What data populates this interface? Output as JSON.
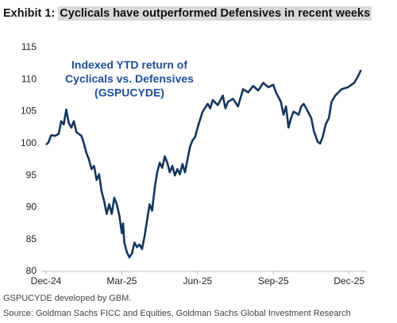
{
  "chart_data": {
    "type": "line",
    "exhibit_label": "Exhibit 1:",
    "title": "Cyclicals have outperformed Defensives in recent weeks",
    "annotation": [
      "Indexed YTD return of",
      "Cyclicals vs. Defensives",
      "(GSPUCYDE)"
    ],
    "notes": [
      "GSPUCYDE developed by GBM.",
      "Source: Goldman Sachs FICC and Equities, Goldman Sachs Global Investment Research"
    ],
    "x": [
      0,
      0.1,
      0.2,
      0.35,
      0.5,
      0.6,
      0.7,
      0.8,
      0.9,
      1.0,
      1.1,
      1.2,
      1.4,
      1.5,
      1.6,
      1.7,
      1.8,
      1.9,
      2.0,
      2.1,
      2.2,
      2.3,
      2.4,
      2.5,
      2.6,
      2.7,
      2.8,
      2.9,
      3.0,
      3.05,
      3.1,
      3.2,
      3.3,
      3.4,
      3.5,
      3.6,
      3.7,
      3.8,
      3.9,
      4.0,
      4.1,
      4.2,
      4.3,
      4.4,
      4.5,
      4.6,
      4.7,
      4.8,
      4.9,
      5.0,
      5.1,
      5.2,
      5.3,
      5.4,
      5.5,
      5.6,
      5.7,
      5.8,
      5.9,
      6.0,
      6.2,
      6.4,
      6.5,
      6.6,
      6.8,
      7.0,
      7.1,
      7.2,
      7.4,
      7.6,
      7.8,
      8.0,
      8.2,
      8.4,
      8.6,
      8.8,
      9.0,
      9.1,
      9.3,
      9.4,
      9.5,
      9.6,
      9.7,
      9.8,
      10.0,
      10.1,
      10.2,
      10.3,
      10.5,
      10.6,
      10.75,
      10.85,
      10.95,
      11.07,
      11.2,
      11.3,
      11.45,
      11.7,
      11.95,
      12.2,
      12.35,
      12.47
    ],
    "series": [
      {
        "color": "#14365d",
        "values": [
          99.8,
          100.2,
          101.3,
          101.2,
          101.5,
          103.5,
          103.0,
          105.3,
          103.2,
          102.5,
          103.5,
          101.8,
          101.2,
          100.0,
          98.5,
          97.5,
          96.0,
          96.5,
          94.3,
          95.2,
          92.5,
          91.0,
          89.0,
          90.5,
          89.0,
          91.5,
          90.5,
          88.8,
          86.0,
          87.5,
          84.5,
          83.0,
          82.2,
          82.8,
          84.5,
          83.8,
          84.2,
          83.5,
          85.5,
          88.0,
          90.5,
          89.5,
          93.0,
          95.5,
          97.0,
          96.2,
          98.0,
          97.0,
          95.5,
          96.5,
          95.0,
          96.0,
          95.2,
          96.8,
          95.5,
          97.5,
          99.5,
          100.5,
          101.0,
          102.5,
          105.0,
          106.2,
          105.5,
          106.8,
          106.0,
          107.5,
          105.5,
          106.5,
          107.0,
          105.8,
          108.5,
          108.0,
          109.0,
          108.3,
          109.5,
          108.8,
          109.2,
          108.0,
          106.5,
          104.5,
          105.8,
          102.5,
          104.0,
          105.0,
          104.5,
          105.8,
          106.2,
          105.5,
          104.0,
          102.0,
          100.3,
          100.0,
          101.0,
          103.0,
          104.0,
          106.5,
          107.5,
          108.5,
          108.8,
          109.5,
          110.5,
          111.5
        ]
      }
    ],
    "xlim": [
      0,
      12.7
    ],
    "xticks": [
      {
        "value": 0,
        "label": "Dec-24"
      },
      {
        "value": 3,
        "label": "Mar-25"
      },
      {
        "value": 6,
        "label": "Jun-25"
      },
      {
        "value": 9,
        "label": "Sep-25"
      },
      {
        "value": 12,
        "label": "Dec-25"
      }
    ],
    "ylim": [
      80,
      115
    ],
    "yticks": [
      80,
      85,
      90,
      95,
      100,
      105,
      110,
      115
    ],
    "grid": false
  }
}
